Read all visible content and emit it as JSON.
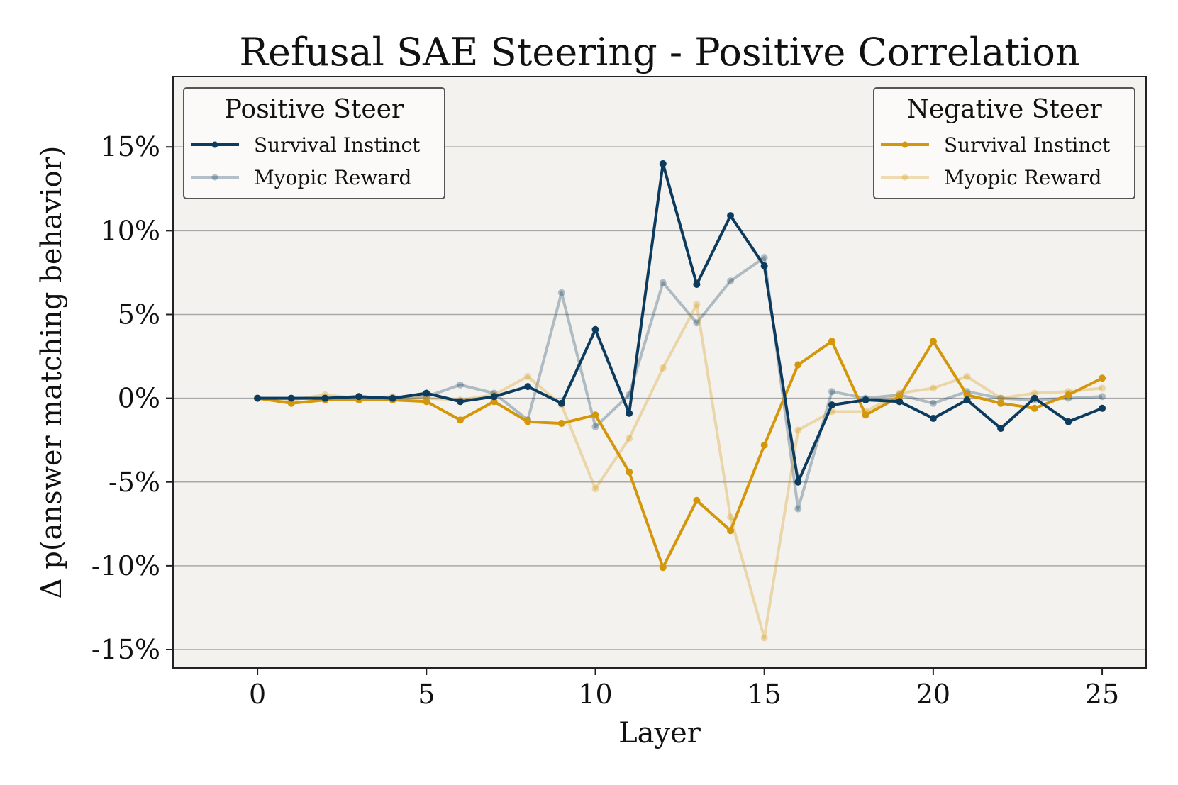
{
  "chart_data": {
    "type": "line",
    "title": "Refusal SAE Steering - Positive Correlation",
    "xlabel": "Layer",
    "ylabel": "Δ p(answer matching behavior)",
    "xlim": [
      -2.5,
      26.3
    ],
    "ylim": [
      -16.1,
      19.2
    ],
    "xticks": [
      0,
      5,
      10,
      15,
      20,
      25
    ],
    "xtick_labels": [
      "0",
      "5",
      "10",
      "15",
      "20",
      "25"
    ],
    "yticks": [
      15,
      10,
      5,
      0,
      -5,
      -10,
      -15
    ],
    "ytick_labels": [
      "15%",
      "10%",
      "5%",
      "0%",
      "-5%",
      "-10%",
      "-15%"
    ],
    "grid": "horizontal",
    "x": [
      0,
      1,
      2,
      3,
      4,
      5,
      6,
      7,
      8,
      9,
      10,
      11,
      12,
      13,
      14,
      15,
      16,
      17,
      18,
      19,
      20,
      21,
      22,
      23,
      24,
      25
    ],
    "legends": [
      {
        "title": "Positive Steer",
        "position": "top-left",
        "series": [
          0,
          1
        ]
      },
      {
        "title": "Negative Steer",
        "position": "top-right",
        "series": [
          2,
          3
        ]
      }
    ],
    "series": [
      {
        "name": "Survival Instinct",
        "group": "Positive Steer",
        "color": "#0d3b5e",
        "opacity": 1.0,
        "values": [
          0.0,
          0.0,
          0.0,
          0.1,
          0.0,
          0.3,
          -0.2,
          0.1,
          0.7,
          -0.3,
          4.1,
          -0.9,
          14.0,
          6.8,
          10.9,
          7.9,
          -5.0,
          -0.4,
          -0.1,
          -0.2,
          -1.2,
          -0.1,
          -1.8,
          0.0,
          -1.4,
          -0.6
        ]
      },
      {
        "name": "Myopic Reward",
        "group": "Positive Steer",
        "color": "#0d3b5e",
        "opacity": 0.3,
        "values": [
          0.0,
          0.0,
          0.0,
          0.0,
          0.0,
          0.1,
          0.8,
          0.3,
          -1.3,
          6.3,
          -1.7,
          0.2,
          6.9,
          4.5,
          7.0,
          8.4,
          -6.6,
          0.4,
          0.0,
          0.2,
          -0.3,
          0.4,
          0.0,
          -0.1,
          0.0,
          0.1
        ]
      },
      {
        "name": "Survival Instinct",
        "group": "Negative Steer",
        "color": "#d4960a",
        "opacity": 1.0,
        "values": [
          0.0,
          -0.3,
          -0.1,
          -0.1,
          -0.1,
          -0.2,
          -1.3,
          -0.2,
          -1.4,
          -1.5,
          -1.0,
          -4.4,
          -10.1,
          -6.1,
          -7.9,
          -2.8,
          2.0,
          3.4,
          -1.0,
          0.1,
          3.4,
          0.2,
          -0.3,
          -0.6,
          0.2,
          1.2
        ]
      },
      {
        "name": "Myopic Reward",
        "group": "Negative Steer",
        "color": "#d4960a",
        "opacity": 0.3,
        "values": [
          0.0,
          -0.1,
          0.2,
          0.0,
          0.1,
          0.0,
          -0.1,
          0.2,
          1.3,
          -0.4,
          -5.4,
          -2.4,
          1.8,
          5.6,
          -7.1,
          -14.3,
          -1.9,
          -0.8,
          -0.8,
          0.3,
          0.6,
          1.3,
          0.0,
          0.3,
          0.4,
          0.6
        ]
      }
    ]
  }
}
